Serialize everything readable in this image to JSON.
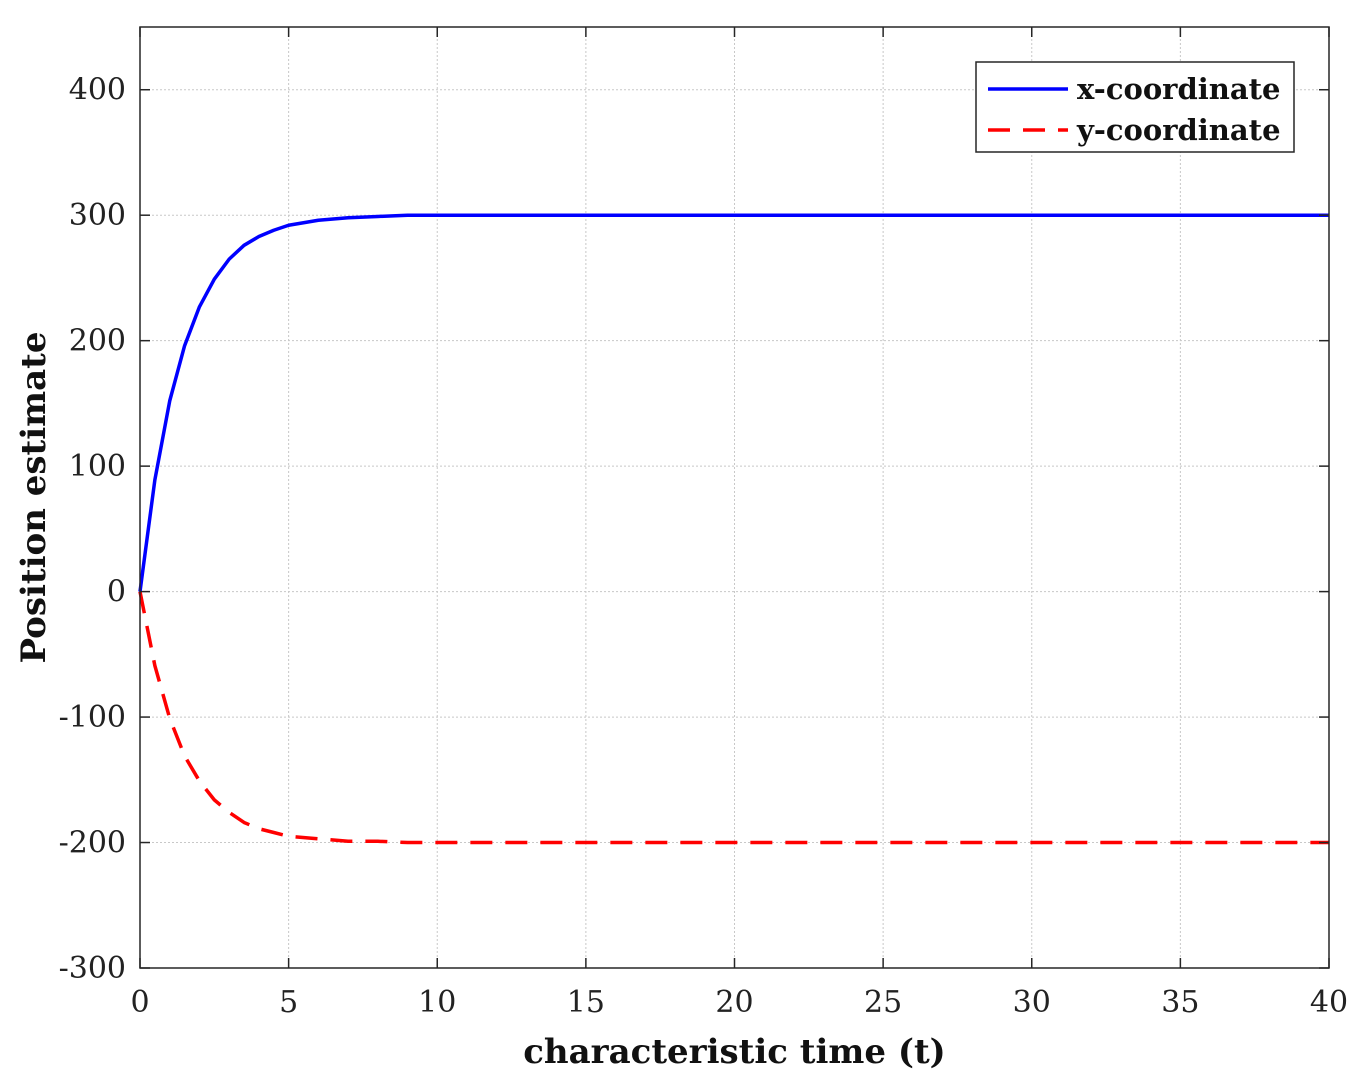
{
  "chart_data": {
    "type": "line",
    "title": "",
    "xlabel": "characteristic time (t)",
    "ylabel": "Position estimate",
    "xlim": [
      0,
      40
    ],
    "ylim": [
      -300,
      450
    ],
    "xticks": [
      0,
      5,
      10,
      15,
      20,
      25,
      30,
      35,
      40
    ],
    "yticks": [
      -300,
      -200,
      -100,
      0,
      100,
      200,
      300,
      400
    ],
    "grid": true,
    "legend_position": "top-right",
    "series": [
      {
        "name": "x-coordinate",
        "color": "#0000ff",
        "style": "solid",
        "x": [
          0,
          0.5,
          1,
          1.5,
          2,
          2.5,
          3,
          3.5,
          4,
          4.5,
          5,
          6,
          7,
          8,
          9,
          10,
          12,
          15,
          20,
          25,
          30,
          35,
          40
        ],
        "y": [
          0,
          89,
          152,
          196,
          227,
          249,
          265,
          276,
          283,
          288,
          292,
          296,
          298,
          299,
          300,
          300,
          300,
          300,
          300,
          300,
          300,
          300,
          300
        ]
      },
      {
        "name": "y-coordinate",
        "color": "#ff0000",
        "style": "dashed",
        "x": [
          0,
          0.5,
          1,
          1.5,
          2,
          2.5,
          3,
          3.5,
          4,
          4.5,
          5,
          6,
          7,
          8,
          9,
          10,
          12,
          15,
          20,
          25,
          30,
          35,
          40
        ],
        "y": [
          0,
          -59,
          -101,
          -131,
          -151,
          -166,
          -176,
          -184,
          -189,
          -192,
          -195,
          -197,
          -199,
          -199,
          -200,
          -200,
          -200,
          -200,
          -200,
          -200,
          -200,
          -200,
          -200
        ]
      }
    ]
  }
}
